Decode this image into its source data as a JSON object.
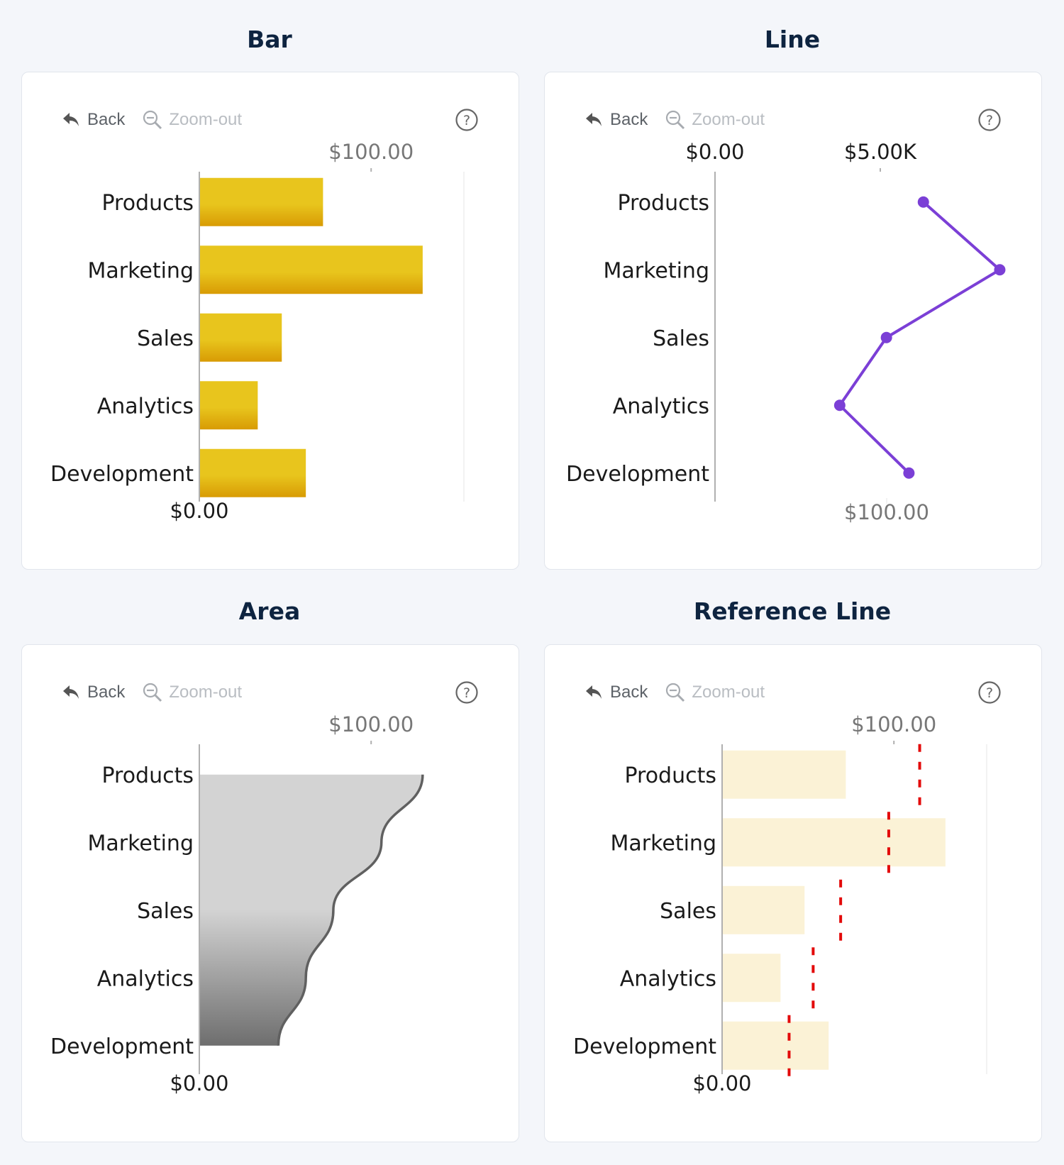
{
  "toolbar": {
    "back_label": "Back",
    "zoom_label": "Zoom-out"
  },
  "icons": {
    "back": "back-arrow-icon",
    "zoom": "zoom-out-icon",
    "help": "help-icon"
  },
  "colors": {
    "bar_top": "#e8c51d",
    "bar_bottom": "#d89b04",
    "line": "#7b3fd6",
    "area_top": "#d3d3d3",
    "area_bottom": "#6e6e6e",
    "area_stroke": "#606060",
    "ref_bar": "#fbf2d6",
    "ref_line": "#e30a0a",
    "axis_text": "#1a1a1a",
    "tick_text": "#777777"
  },
  "chart_data": [
    {
      "panel_title": "Bar",
      "type": "bar",
      "orientation": "horizontal",
      "categories": [
        "Products",
        "Marketing",
        "Sales",
        "Analytics",
        "Development"
      ],
      "values": [
        72,
        130,
        48,
        34,
        62
      ],
      "tick_labels": [
        "$0.00",
        "$100.00"
      ],
      "xlim": [
        0,
        154
      ],
      "grid": false
    },
    {
      "panel_title": "Line",
      "type": "line",
      "orientation": "horizontal",
      "categories": [
        "Products",
        "Marketing",
        "Sales",
        "Analytics",
        "Development"
      ],
      "values": [
        7500,
        10250,
        6170,
        4490,
        6980
      ],
      "tick_labels_top": [
        "$0.00",
        "$5.00K"
      ],
      "tick_labels_bottom": [
        "$100.00"
      ],
      "xlim": [
        0,
        12000
      ],
      "grid": false
    },
    {
      "panel_title": "Area",
      "type": "area",
      "orientation": "horizontal",
      "categories": [
        "Products",
        "Marketing",
        "Sales",
        "Analytics",
        "Development"
      ],
      "values": [
        130,
        106,
        78,
        62,
        46
      ],
      "tick_labels": [
        "$0.00",
        "$100.00"
      ],
      "xlim": [
        0,
        154
      ],
      "grid": false
    },
    {
      "panel_title": "Reference Line",
      "type": "bar",
      "orientation": "horizontal",
      "categories": [
        "Products",
        "Marketing",
        "Sales",
        "Analytics",
        "Development"
      ],
      "values": [
        72,
        130,
        48,
        34,
        62
      ],
      "reference_values": [
        115,
        97,
        69,
        53,
        39
      ],
      "tick_labels": [
        "$0.00",
        "$100.00"
      ],
      "xlim": [
        0,
        154
      ],
      "grid": false
    }
  ]
}
